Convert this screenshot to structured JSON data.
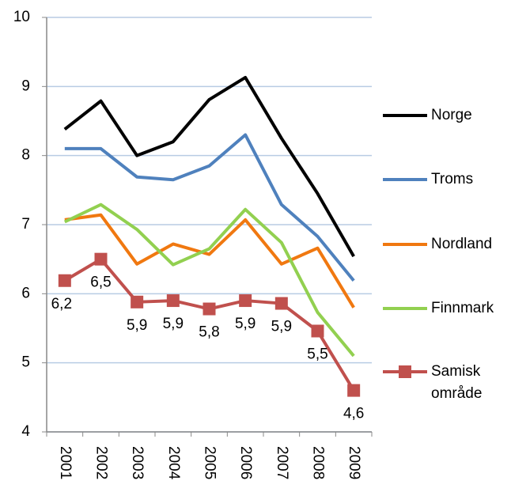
{
  "chart_data": {
    "type": "line",
    "categories": [
      "2001",
      "2002",
      "2003",
      "2004",
      "2005",
      "2006",
      "2007",
      "2008",
      "2009"
    ],
    "series": [
      {
        "name": "Norge",
        "color": "#000000",
        "values": [
          8.38,
          8.79,
          8.0,
          8.2,
          8.81,
          9.13,
          8.25,
          7.45,
          6.54
        ]
      },
      {
        "name": "Troms",
        "color": "#4f81bd",
        "values": [
          8.1,
          8.1,
          7.69,
          7.65,
          7.85,
          8.3,
          7.29,
          6.83,
          6.19
        ]
      },
      {
        "name": "Nordland",
        "color": "#f07810",
        "values": [
          7.07,
          7.14,
          6.43,
          6.72,
          6.57,
          7.07,
          6.43,
          6.66,
          5.8
        ]
      },
      {
        "name": "Finnmark",
        "color": "#92d050",
        "values": [
          7.04,
          7.29,
          6.93,
          6.42,
          6.65,
          7.22,
          6.74,
          5.73,
          5.1
        ]
      },
      {
        "name": "Samisk område",
        "color": "#c0504d",
        "marker": "square",
        "values": [
          6.19,
          6.5,
          5.88,
          5.9,
          5.78,
          5.9,
          5.86,
          5.46,
          4.6
        ],
        "value_labels": [
          "6,2",
          "6,5",
          "5,9",
          "5,9",
          "5,8",
          "5,9",
          "5,9",
          "5,5",
          "4,6"
        ]
      }
    ],
    "ylim": [
      4,
      10
    ],
    "yticks": [
      4,
      5,
      6,
      7,
      8,
      9,
      10
    ],
    "grid": true,
    "legend": "right"
  }
}
